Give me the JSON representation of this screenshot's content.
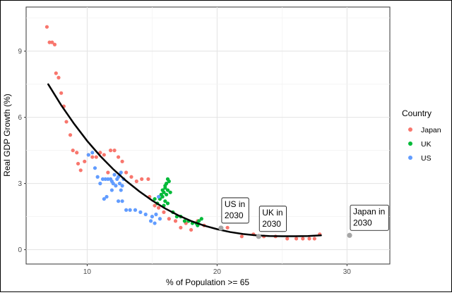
{
  "chart_data": {
    "type": "scatter",
    "xlabel": "% of Population >= 65",
    "ylabel": "Real GDP Growth (%)",
    "xlim": [
      5.3,
      33.3
    ],
    "ylim": [
      -0.65,
      11.0
    ],
    "x_ticks": [
      10,
      20,
      30
    ],
    "y_ticks": [
      0,
      3,
      6,
      9
    ],
    "grid": true,
    "legend": {
      "title": "Country",
      "position": "right"
    },
    "series": [
      {
        "name": "Japan",
        "color": "#F8766D",
        "points": [
          [
            6.9,
            10.1
          ],
          [
            7.1,
            9.4
          ],
          [
            7.3,
            9.4
          ],
          [
            7.5,
            9.3
          ],
          [
            7.6,
            8.0
          ],
          [
            7.8,
            7.8
          ],
          [
            8.0,
            7.1
          ],
          [
            8.2,
            6.5
          ],
          [
            8.4,
            5.8
          ],
          [
            8.7,
            5.2
          ],
          [
            8.9,
            4.5
          ],
          [
            9.2,
            4.4
          ],
          [
            9.3,
            3.9
          ],
          [
            9.5,
            3.6
          ],
          [
            9.8,
            4.0
          ],
          [
            10.1,
            4.3
          ],
          [
            10.4,
            4.2
          ],
          [
            10.7,
            4.2
          ],
          [
            11.0,
            4.4
          ],
          [
            11.3,
            4.3
          ],
          [
            11.6,
            3.5
          ],
          [
            11.8,
            4.5
          ],
          [
            12.1,
            4.5
          ],
          [
            12.4,
            4.2
          ],
          [
            12.7,
            4.0
          ],
          [
            13.0,
            3.5
          ],
          [
            13.4,
            3.3
          ],
          [
            13.8,
            3.1
          ],
          [
            14.2,
            3.2
          ],
          [
            14.7,
            3.2
          ],
          [
            14.8,
            2.4
          ],
          [
            15.2,
            2.0
          ],
          [
            15.5,
            1.9
          ],
          [
            15.9,
            1.7
          ],
          [
            16.3,
            1.4
          ],
          [
            16.8,
            1.3
          ],
          [
            17.2,
            1.0
          ],
          [
            17.6,
            1.2
          ],
          [
            18.0,
            0.9
          ],
          [
            18.5,
            1.3
          ],
          [
            19.0,
            1.1
          ],
          [
            20.8,
            1.0
          ],
          [
            21.9,
            0.6
          ],
          [
            22.8,
            0.7
          ],
          [
            23.6,
            0.6
          ],
          [
            24.5,
            0.6
          ],
          [
            25.4,
            0.5
          ],
          [
            26.1,
            0.5
          ],
          [
            26.6,
            0.5
          ],
          [
            27.1,
            0.5
          ],
          [
            27.5,
            0.5
          ],
          [
            27.9,
            0.7
          ]
        ]
      },
      {
        "name": "UK",
        "color": "#00BA38",
        "points": [
          [
            15.2,
            2.3
          ],
          [
            15.4,
            2.1
          ],
          [
            15.6,
            2.3
          ],
          [
            15.7,
            2.5
          ],
          [
            15.8,
            2.7
          ],
          [
            15.8,
            2.4
          ],
          [
            15.9,
            2.0
          ],
          [
            15.9,
            2.6
          ],
          [
            16.0,
            2.9
          ],
          [
            16.0,
            2.2
          ],
          [
            16.0,
            2.8
          ],
          [
            16.1,
            3.0
          ],
          [
            16.1,
            2.5
          ],
          [
            16.2,
            3.2
          ],
          [
            16.2,
            2.7
          ],
          [
            16.3,
            3.1
          ],
          [
            16.4,
            2.6
          ],
          [
            16.2,
            2.1
          ],
          [
            16.6,
            1.7
          ],
          [
            16.9,
            1.5
          ],
          [
            17.2,
            1.5
          ],
          [
            17.5,
            1.3
          ],
          [
            17.8,
            1.3
          ],
          [
            18.1,
            1.2
          ],
          [
            18.4,
            1.2
          ],
          [
            18.6,
            1.3
          ],
          [
            18.8,
            1.4
          ],
          [
            18.5,
            1.1
          ]
        ]
      },
      {
        "name": "US",
        "color": "#619CFF",
        "points": [
          [
            10.1,
            4.3
          ],
          [
            10.4,
            4.4
          ],
          [
            10.6,
            3.7
          ],
          [
            10.8,
            3.3
          ],
          [
            11.0,
            3.0
          ],
          [
            11.2,
            3.2
          ],
          [
            11.4,
            3.2
          ],
          [
            11.6,
            3.2
          ],
          [
            11.8,
            3.2
          ],
          [
            11.9,
            3.1
          ],
          [
            12.0,
            3.0
          ],
          [
            12.1,
            3.4
          ],
          [
            12.2,
            2.9
          ],
          [
            12.3,
            3.2
          ],
          [
            12.4,
            3.3
          ],
          [
            12.5,
            3.4
          ],
          [
            12.5,
            3.0
          ],
          [
            12.6,
            3.5
          ],
          [
            12.7,
            2.9
          ],
          [
            12.8,
            3.2
          ],
          [
            12.6,
            2.7
          ],
          [
            11.9,
            2.7
          ],
          [
            11.5,
            2.4
          ],
          [
            11.3,
            2.3
          ],
          [
            12.4,
            2.2
          ],
          [
            12.7,
            2.2
          ],
          [
            13.0,
            1.8
          ],
          [
            13.3,
            1.8
          ],
          [
            13.7,
            1.8
          ],
          [
            14.1,
            1.7
          ],
          [
            14.5,
            1.6
          ],
          [
            15.0,
            1.5
          ],
          [
            15.3,
            1.6
          ],
          [
            15.6,
            1.4
          ],
          [
            15.2,
            1.2
          ],
          [
            14.9,
            1.3
          ],
          [
            15.5,
            2.4
          ]
        ]
      }
    ],
    "trend": {
      "color": "#000000",
      "points": [
        [
          7.0,
          7.5
        ],
        [
          8.0,
          6.55
        ],
        [
          9.0,
          5.7
        ],
        [
          10.0,
          4.93
        ],
        [
          11.0,
          4.25
        ],
        [
          12.0,
          3.65
        ],
        [
          13.0,
          3.12
        ],
        [
          14.0,
          2.65
        ],
        [
          15.0,
          2.23
        ],
        [
          16.0,
          1.87
        ],
        [
          17.0,
          1.56
        ],
        [
          18.0,
          1.3
        ],
        [
          19.0,
          1.09
        ],
        [
          20.0,
          0.93
        ],
        [
          21.0,
          0.8
        ],
        [
          22.0,
          0.71
        ],
        [
          23.0,
          0.65
        ],
        [
          24.0,
          0.62
        ],
        [
          25.0,
          0.61
        ],
        [
          26.0,
          0.61
        ],
        [
          27.0,
          0.62
        ],
        [
          28.0,
          0.65
        ]
      ]
    },
    "annotations": [
      {
        "id": "us",
        "line1": "US in",
        "line2": "2030",
        "x": 20.3,
        "y": 0.98,
        "color": "#A6A6A6"
      },
      {
        "id": "uk",
        "line1": "UK in",
        "line2": "2030",
        "x": 23.2,
        "y": 0.6,
        "color": "#A6A6A6"
      },
      {
        "id": "japan",
        "line1": "Japan in",
        "line2": "2030",
        "x": 30.2,
        "y": 0.65,
        "color": "#A6A6A6"
      }
    ]
  }
}
